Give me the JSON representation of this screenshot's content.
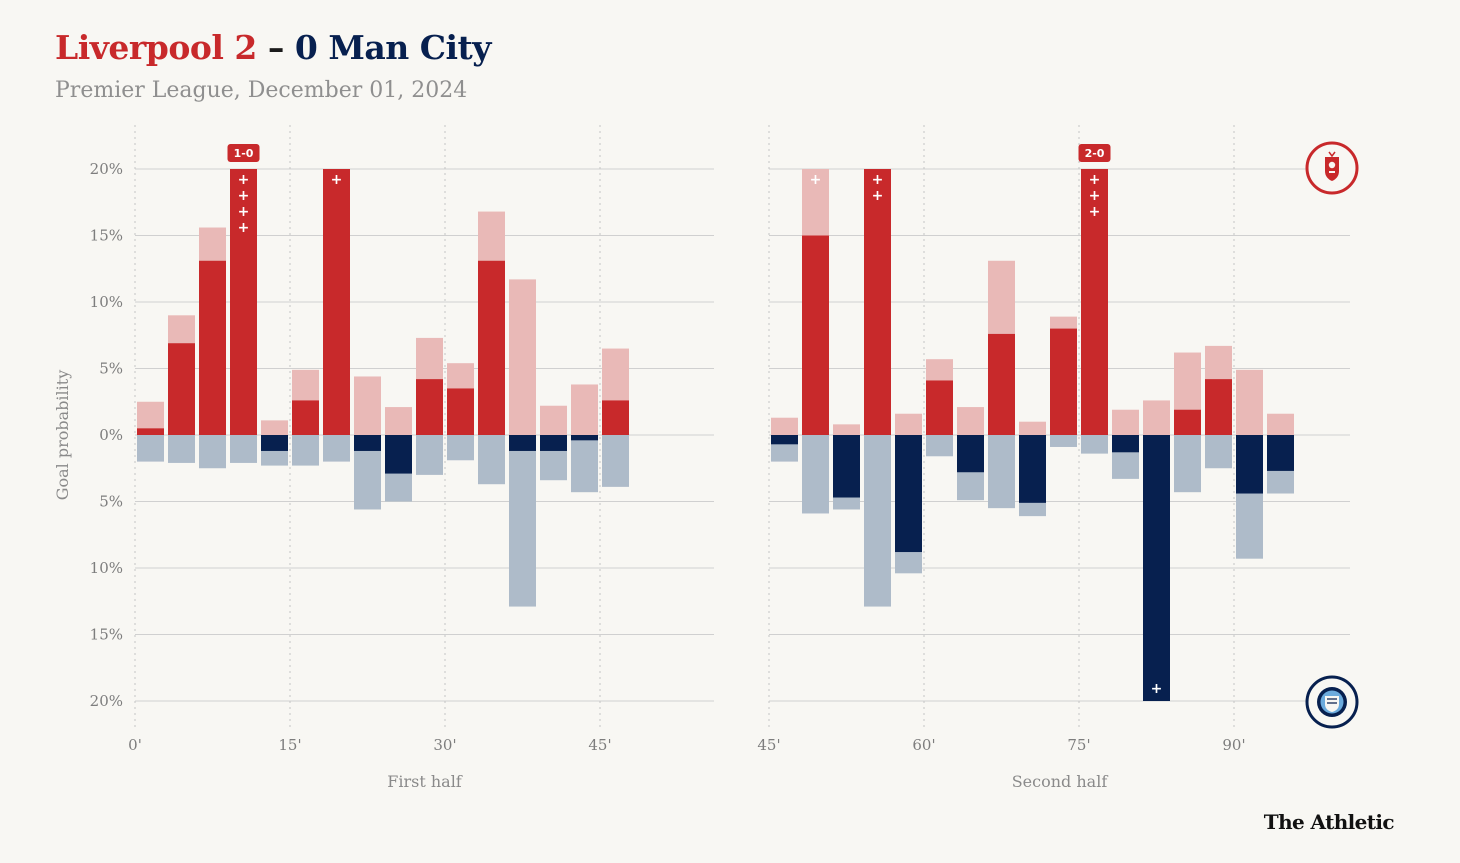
{
  "title": {
    "home": "Liverpool 2",
    "separator": " – ",
    "away": "0 Man City"
  },
  "subtitle": "Premier League, December 01, 2024",
  "brand": "The Athletic",
  "colors": {
    "home_dark": "#c8292b",
    "home_light": "#e9b9b7",
    "away_dark": "#07204f",
    "away_light": "#aebbc9",
    "grid": "#d0d0d0"
  },
  "chart_data": {
    "type": "bar",
    "ylabel": "Goal probability",
    "ylim": [
      -20,
      20
    ],
    "yticks": [
      20,
      15,
      10,
      5,
      0,
      -5,
      -10,
      -15,
      -20
    ],
    "ytick_labels": [
      "20%",
      "15%",
      "10%",
      "5%",
      "0%",
      "5%",
      "10%",
      "15%",
      "20%"
    ],
    "team_badges": {
      "top": "liverpool-crest-icon",
      "bottom": "man-city-crest-icon"
    },
    "halves": [
      {
        "name": "First half",
        "xlim": [
          0,
          48
        ],
        "xticks": [
          0,
          15,
          30,
          45
        ],
        "xtick_labels": [
          "0'",
          "15'",
          "30'",
          "45'"
        ],
        "bins": [
          {
            "minute": 1.5,
            "home_dark": 0.5,
            "home_total": 2.5,
            "away_dark": 0,
            "away_total": 2.0
          },
          {
            "minute": 4.5,
            "home_dark": 6.9,
            "home_total": 9.0,
            "away_dark": 0,
            "away_total": 2.1
          },
          {
            "minute": 7.5,
            "home_dark": 13.1,
            "home_total": 15.6,
            "away_dark": 0,
            "away_total": 2.5
          },
          {
            "minute": 10.5,
            "home_dark": 20,
            "home_total": 20,
            "away_dark": 0,
            "away_total": 2.1,
            "home_shots": 4,
            "score": "1-0"
          },
          {
            "minute": 13.5,
            "home_dark": 0,
            "home_total": 1.1,
            "away_dark": 1.2,
            "away_total": 2.3
          },
          {
            "minute": 16.5,
            "home_dark": 2.6,
            "home_total": 4.9,
            "away_dark": 0,
            "away_total": 2.3
          },
          {
            "minute": 19.5,
            "home_dark": 20,
            "home_total": 20,
            "away_dark": 0,
            "away_total": 2.0,
            "home_shots": 1
          },
          {
            "minute": 22.5,
            "home_dark": 0,
            "home_total": 4.4,
            "away_dark": 1.2,
            "away_total": 5.6
          },
          {
            "minute": 25.5,
            "home_dark": 0,
            "home_total": 2.1,
            "away_dark": 2.9,
            "away_total": 5.0
          },
          {
            "minute": 28.5,
            "home_dark": 4.2,
            "home_total": 7.3,
            "away_dark": 0,
            "away_total": 3.0
          },
          {
            "minute": 31.5,
            "home_dark": 3.5,
            "home_total": 5.4,
            "away_dark": 0,
            "away_total": 1.9
          },
          {
            "minute": 34.5,
            "home_dark": 13.1,
            "home_total": 16.8,
            "away_dark": 0,
            "away_total": 3.7
          },
          {
            "minute": 37.5,
            "home_dark": 0,
            "home_total": 11.7,
            "away_dark": 1.2,
            "away_total": 12.9
          },
          {
            "minute": 40.5,
            "home_dark": 0,
            "home_total": 2.2,
            "away_dark": 1.2,
            "away_total": 3.4
          },
          {
            "minute": 43.5,
            "home_dark": 0,
            "home_total": 3.8,
            "away_dark": 0.4,
            "away_total": 4.3
          },
          {
            "minute": 46.5,
            "home_dark": 2.6,
            "home_total": 6.5,
            "away_dark": 0,
            "away_total": 3.9
          }
        ]
      },
      {
        "name": "Second half",
        "xlim": [
          45,
          100.5
        ],
        "xticks": [
          45,
          60,
          75,
          90
        ],
        "xtick_labels": [
          "45'",
          "60'",
          "75'",
          "90'"
        ],
        "bins": [
          {
            "minute": 46.5,
            "home_dark": 0,
            "home_total": 1.3,
            "away_dark": 0.7,
            "away_total": 2.0
          },
          {
            "minute": 49.5,
            "home_dark": 15.0,
            "home_total": 20,
            "away_dark": 0,
            "away_total": 5.9,
            "home_shots_light": 1
          },
          {
            "minute": 52.5,
            "home_dark": 0,
            "home_total": 0.8,
            "away_dark": 4.7,
            "away_total": 5.6
          },
          {
            "minute": 55.5,
            "home_dark": 20,
            "home_total": 20,
            "away_dark": 0,
            "away_total": 12.9,
            "home_shots": 2
          },
          {
            "minute": 58.5,
            "home_dark": 0,
            "home_total": 1.6,
            "away_dark": 8.8,
            "away_total": 10.4
          },
          {
            "minute": 61.5,
            "home_dark": 4.1,
            "home_total": 5.7,
            "away_dark": 0,
            "away_total": 1.6
          },
          {
            "minute": 64.5,
            "home_dark": 0,
            "home_total": 2.1,
            "away_dark": 2.8,
            "away_total": 4.9
          },
          {
            "minute": 67.5,
            "home_dark": 7.6,
            "home_total": 13.1,
            "away_dark": 0,
            "away_total": 5.5
          },
          {
            "minute": 70.5,
            "home_dark": 0,
            "home_total": 1.0,
            "away_dark": 5.1,
            "away_total": 6.1
          },
          {
            "minute": 73.5,
            "home_dark": 8.0,
            "home_total": 8.9,
            "away_dark": 0,
            "away_total": 0.9
          },
          {
            "minute": 76.5,
            "home_dark": 20,
            "home_total": 20,
            "away_dark": 0,
            "away_total": 1.4,
            "home_shots": 3,
            "score": "2-0"
          },
          {
            "minute": 79.5,
            "home_dark": 0,
            "home_total": 1.9,
            "away_dark": 1.3,
            "away_total": 3.3
          },
          {
            "minute": 82.5,
            "home_dark": 0,
            "home_total": 2.6,
            "away_dark": 20,
            "away_total": 20,
            "away_shots": 1
          },
          {
            "minute": 85.5,
            "home_dark": 1.9,
            "home_total": 6.2,
            "away_dark": 0,
            "away_total": 4.3
          },
          {
            "minute": 88.5,
            "home_dark": 4.2,
            "home_total": 6.7,
            "away_dark": 0,
            "away_total": 2.5
          },
          {
            "minute": 91.5,
            "home_dark": 0,
            "home_total": 4.9,
            "away_dark": 4.4,
            "away_total": 9.3
          },
          {
            "minute": 94.5,
            "home_dark": 0,
            "home_total": 1.6,
            "away_dark": 2.7,
            "away_total": 4.4
          }
        ]
      }
    ]
  }
}
